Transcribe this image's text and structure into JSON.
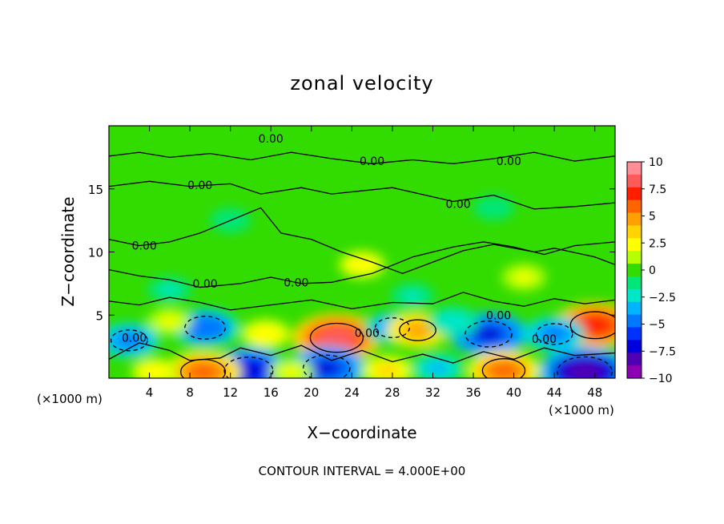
{
  "chart_data": {
    "type": "heatmap",
    "title": "zonal velocity",
    "xlabel": "X−coordinate",
    "ylabel": "Z−coordinate",
    "x_unit_left": "(×1000 m)",
    "x_unit_right": "(×1000 m)",
    "footer": "CONTOUR INTERVAL = 4.000E+00",
    "xlim": [
      0,
      50
    ],
    "ylim": [
      0,
      20
    ],
    "x_ticks": [
      4,
      8,
      12,
      16,
      20,
      24,
      28,
      32,
      36,
      40,
      44,
      48
    ],
    "x_tick_labels": [
      "4",
      "8",
      "12",
      "16",
      "20",
      "24",
      "28",
      "32",
      "36",
      "40",
      "44",
      "48"
    ],
    "y_ticks": [
      5,
      10,
      15
    ],
    "y_tick_labels": [
      "5",
      "10",
      "15"
    ],
    "contour_labels": [
      {
        "text": "0.00",
        "x": 16.0,
        "y": 19.0
      },
      {
        "text": "0.00",
        "x": 26.0,
        "y": 17.2
      },
      {
        "text": "0.00",
        "x": 39.5,
        "y": 17.2
      },
      {
        "text": "0.00",
        "x": 9.0,
        "y": 15.3
      },
      {
        "text": "0.00",
        "x": 34.5,
        "y": 13.8
      },
      {
        "text": "0.00",
        "x": 3.5,
        "y": 10.5
      },
      {
        "text": "0.00",
        "x": 9.5,
        "y": 7.5
      },
      {
        "text": "0.00",
        "x": 18.5,
        "y": 7.6
      },
      {
        "text": "0.00",
        "x": 38.5,
        "y": 5.0
      },
      {
        "text": "0.00",
        "x": 2.5,
        "y": 3.2
      },
      {
        "text": "0.00",
        "x": 25.5,
        "y": 3.6
      },
      {
        "text": "0.00",
        "x": 43.0,
        "y": 3.1
      }
    ],
    "field_features": [
      {
        "x": 22.5,
        "z": 3.2,
        "value": 8.5
      },
      {
        "x": 13.8,
        "z": 0.6,
        "value": -7.5
      },
      {
        "x": 21.5,
        "z": 0.8,
        "value": -7.0
      },
      {
        "x": 37.5,
        "z": 3.5,
        "value": -7.0
      },
      {
        "x": 9.3,
        "z": 0.5,
        "value": 6.5
      },
      {
        "x": 48.0,
        "z": 4.2,
        "value": 7.5
      },
      {
        "x": 47.0,
        "z": 0.5,
        "value": -9.0
      },
      {
        "x": 39.0,
        "z": 0.6,
        "value": 6.0
      },
      {
        "x": 9.5,
        "z": 4.0,
        "value": -5.5
      },
      {
        "x": 2.0,
        "z": 3.0,
        "value": -4.5
      },
      {
        "x": 28.0,
        "z": 4.0,
        "value": -4.0
      },
      {
        "x": 30.5,
        "z": 3.8,
        "value": 4.5
      },
      {
        "x": 27.5,
        "z": 0.6,
        "value": 3.5
      },
      {
        "x": 15.5,
        "z": 3.5,
        "value": 3.0
      },
      {
        "x": 44.0,
        "z": 3.5,
        "value": -4.5
      },
      {
        "x": 25.0,
        "z": 9.0,
        "value": 2.5
      },
      {
        "x": 41.0,
        "z": 8.0,
        "value": 2.0
      },
      {
        "x": 32.5,
        "z": 0.8,
        "value": -3.5
      },
      {
        "x": 4.5,
        "z": 0.5,
        "value": 2.5
      },
      {
        "x": 18.0,
        "z": 0.5,
        "value": 2.0
      },
      {
        "x": 6.0,
        "z": 4.5,
        "value": 2.0
      },
      {
        "x": 34.0,
        "z": 4.5,
        "value": -3.0
      },
      {
        "x": 6.0,
        "z": 7.0,
        "value": -2.0
      },
      {
        "x": 30.0,
        "z": 6.5,
        "value": -2.0
      },
      {
        "x": 12.0,
        "z": 12.5,
        "value": -1.5
      },
      {
        "x": 38.0,
        "z": 13.5,
        "value": -1.5
      }
    ],
    "colorbar": {
      "ticks": [
        "10",
        "7.5",
        "5",
        "2.5",
        "0",
        "−2.5",
        "−5",
        "−7.5",
        "−10"
      ],
      "levels": [
        {
          "value": 10,
          "color": "#ff8c96"
        },
        {
          "value": 8.75,
          "color": "#ff5a5a"
        },
        {
          "value": 7.5,
          "color": "#ff1e00"
        },
        {
          "value": 6.25,
          "color": "#ff6400"
        },
        {
          "value": 5,
          "color": "#ffa000"
        },
        {
          "value": 3.75,
          "color": "#ffd200"
        },
        {
          "value": 2.5,
          "color": "#ffff00"
        },
        {
          "value": 1.25,
          "color": "#b4ff00"
        },
        {
          "value": 0,
          "color": "#32dc00"
        },
        {
          "value": -1.25,
          "color": "#00e678"
        },
        {
          "value": -2.5,
          "color": "#00e6c8"
        },
        {
          "value": -3.75,
          "color": "#00b4ff"
        },
        {
          "value": -5,
          "color": "#0078ff"
        },
        {
          "value": -6.25,
          "color": "#0032ff"
        },
        {
          "value": -7.5,
          "color": "#0000dc"
        },
        {
          "value": -8.75,
          "color": "#5000b4"
        },
        {
          "value": -10,
          "color": "#8c00b4"
        }
      ]
    }
  }
}
